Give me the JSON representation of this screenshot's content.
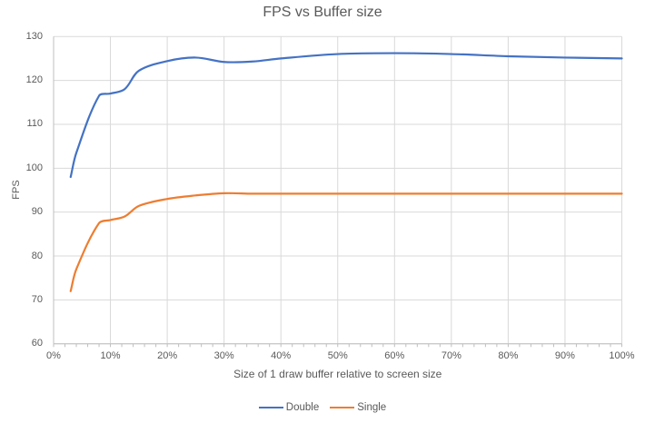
{
  "chart_data": {
    "type": "line",
    "title": "FPS vs Buffer size",
    "xlabel": "Size of 1 draw buffer relative to screen size",
    "ylabel": "FPS",
    "xlim": [
      0,
      100
    ],
    "ylim": [
      60,
      130
    ],
    "x_tick_labels": [
      "0%",
      "10%",
      "20%",
      "30%",
      "40%",
      "50%",
      "60%",
      "70%",
      "80%",
      "90%",
      "100%"
    ],
    "x_tick_values": [
      0,
      10,
      20,
      30,
      40,
      50,
      60,
      70,
      80,
      90,
      100
    ],
    "x_minor_tick_step": 2,
    "y_tick_labels": [
      "60",
      "70",
      "80",
      "90",
      "100",
      "110",
      "120",
      "130"
    ],
    "y_tick_values": [
      60,
      70,
      80,
      90,
      100,
      110,
      120,
      130
    ],
    "grid": true,
    "legend_position": "bottom",
    "colors": {
      "grid": "#d9d9d9",
      "axis": "#bfbfbf",
      "text": "#595959"
    },
    "series": [
      {
        "name": "Double",
        "color": "#4472c4",
        "x": [
          3,
          4,
          8,
          10,
          12.5,
          15,
          20,
          25,
          30,
          35,
          40,
          50,
          60,
          70,
          80,
          90,
          100
        ],
        "y": [
          98,
          103.5,
          116.5,
          117,
          118,
          122.2,
          124.4,
          125.2,
          124.2,
          124.3,
          125,
          126,
          126.2,
          126,
          125.5,
          125.2,
          125
        ]
      },
      {
        "name": "Single",
        "color": "#ed7d31",
        "x": [
          3,
          4,
          8,
          10,
          12.5,
          15,
          20,
          25,
          30,
          35,
          40,
          50,
          60,
          70,
          80,
          90,
          100
        ],
        "y": [
          72,
          77,
          87.5,
          88.2,
          89,
          91.4,
          93,
          93.8,
          94.3,
          94.2,
          94.2,
          94.2,
          94.2,
          94.2,
          94.2,
          94.2,
          94.2
        ]
      }
    ]
  }
}
